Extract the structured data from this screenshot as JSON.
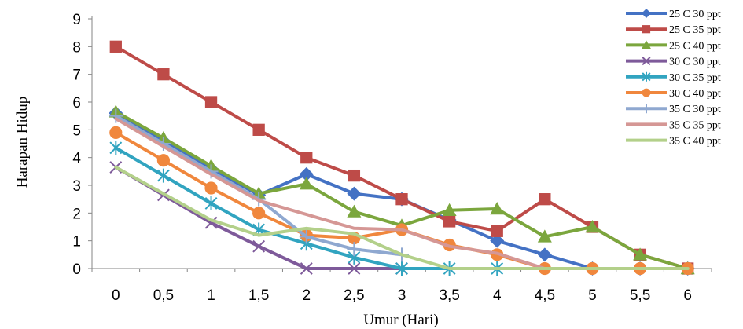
{
  "chart_data": {
    "type": "line",
    "title": "",
    "xlabel": "Umur (Hari)",
    "ylabel": "Harapan Hidup",
    "x": [
      "0",
      "0,5",
      "1",
      "1,5",
      "2",
      "2,5",
      "3",
      "3,5",
      "4",
      "4,5",
      "5",
      "5,5",
      "6"
    ],
    "ylim": [
      0,
      9
    ],
    "yticks": [
      "0",
      "1",
      "2",
      "3",
      "4",
      "5",
      "6",
      "7",
      "8",
      "9"
    ],
    "grid": false,
    "legend_position": "right",
    "series": [
      {
        "name": "25 C  30 ppt",
        "color": "#4472c4",
        "marker": "diamond",
        "values": [
          5.6,
          4.6,
          3.6,
          2.65,
          3.4,
          2.7,
          2.5,
          1.75,
          1.0,
          0.5,
          0,
          0,
          0
        ]
      },
      {
        "name": "25 C  35 ppt",
        "color": "#be4b48",
        "marker": "square",
        "values": [
          8.0,
          7.0,
          6.0,
          5.0,
          4.0,
          3.35,
          2.5,
          1.7,
          1.35,
          2.5,
          1.5,
          0.5,
          0
        ]
      },
      {
        "name": "25 C  40 ppt",
        "color": "#7ba63d",
        "marker": "triangle",
        "values": [
          5.65,
          4.7,
          3.7,
          2.7,
          3.05,
          2.05,
          1.55,
          2.1,
          2.15,
          1.15,
          1.5,
          0.5,
          0
        ]
      },
      {
        "name": "30 C  30 ppt",
        "color": "#7e5a9a",
        "marker": "x",
        "values": [
          3.65,
          2.65,
          1.65,
          0.8,
          0,
          0,
          0,
          null,
          null,
          null,
          null,
          null,
          null
        ]
      },
      {
        "name": "30 C  35 ppt",
        "color": "#31a4c0",
        "marker": "star",
        "values": [
          4.35,
          3.35,
          2.35,
          1.4,
          0.9,
          0.4,
          0,
          0,
          0,
          null,
          null,
          null,
          null
        ]
      },
      {
        "name": "30 C  40 ppt",
        "color": "#f0873d",
        "marker": "circle",
        "values": [
          4.9,
          3.9,
          2.9,
          2.0,
          1.2,
          1.1,
          1.4,
          0.85,
          0.5,
          0,
          0,
          0,
          0
        ]
      },
      {
        "name": "35 C  30 ppt",
        "color": "#8fa8d0",
        "marker": "plus",
        "values": [
          5.5,
          4.5,
          3.5,
          2.5,
          1.15,
          0.7,
          0.5,
          null,
          null,
          null,
          null,
          null,
          null
        ]
      },
      {
        "name": "35 C  35 ppt",
        "color": "#d59795",
        "marker": "none",
        "values": [
          5.4,
          4.4,
          3.4,
          2.45,
          1.95,
          1.45,
          1.4,
          0.8,
          0.55,
          0,
          0,
          0,
          0
        ]
      },
      {
        "name": "35 C  40 ppt",
        "color": "#b3d08a",
        "marker": "none",
        "values": [
          3.65,
          2.7,
          1.75,
          1.2,
          1.45,
          1.25,
          0.5,
          0,
          0,
          0,
          0,
          0,
          0
        ]
      }
    ]
  }
}
